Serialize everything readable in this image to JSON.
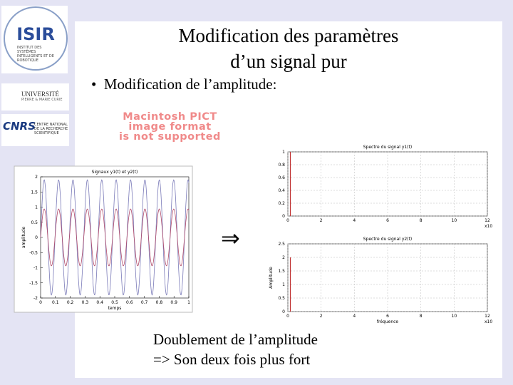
{
  "logos": {
    "isir": "ISIR",
    "isir_caption": "INSTITUT DES SYSTÈMES INTELLIGENTS ET DE ROBOTIQUE",
    "upmc": "UNIVERSITÉ",
    "upmc_sub": "PIERRE & MARIE CURIE",
    "cnrs": "CNRS",
    "cnrs_caption": "CENTRE NATIONAL DE LA RECHERCHE SCIENTIFIQUE"
  },
  "slide": {
    "title": [
      "Modification des paramètres",
      "d’un signal pur"
    ],
    "bullet": "Modification de l’amplitude:",
    "placeholder": [
      "Macintosh PICT",
      "image format",
      "is not supported"
    ],
    "arrow": "⇒",
    "conclusion": [
      "Doublement de l’amplitude",
      "=> Son deux fois plus fort"
    ]
  },
  "plots": [
    {
      "kind": "signal",
      "title": "Signaux y1(t) et y2(t)",
      "xlabel": "temps",
      "ylabel": "amplitude",
      "xlim": [
        0,
        1
      ],
      "ylim": [
        -2,
        2
      ],
      "xticks": [
        0,
        0.1,
        0.2,
        0.3,
        0.4,
        0.5,
        0.6,
        0.7,
        0.8,
        0.9,
        1
      ],
      "yticks": [
        -2,
        -1.5,
        -1,
        -0.5,
        0,
        0.5,
        1,
        1.5,
        2
      ]
    },
    {
      "kind": "spectrum",
      "title": "Spectre du signal y1(t)",
      "exponent": "x10",
      "xlim": [
        0,
        12
      ],
      "ylim": [
        0,
        1
      ],
      "xticks": [
        0,
        2,
        4,
        6,
        8,
        10,
        12
      ],
      "yticks": [
        0,
        0.2,
        0.4,
        0.6,
        0.8,
        1
      ],
      "peaks": [
        {
          "x": 0.15,
          "value": 1
        }
      ]
    },
    {
      "kind": "spectrum",
      "title": "Spectre du signal y2(t)",
      "xlabel": "fréquence",
      "ylabel": "Amplitude",
      "exponent": "x10",
      "xlim": [
        0,
        12
      ],
      "ylim": [
        0,
        2.5
      ],
      "xticks": [
        0,
        2,
        4,
        6,
        8,
        10,
        12
      ],
      "yticks": [
        0,
        0.5,
        1,
        1.5,
        2,
        2.5
      ],
      "peaks": [
        {
          "x": 0.15,
          "value": 2
        }
      ]
    }
  ]
}
